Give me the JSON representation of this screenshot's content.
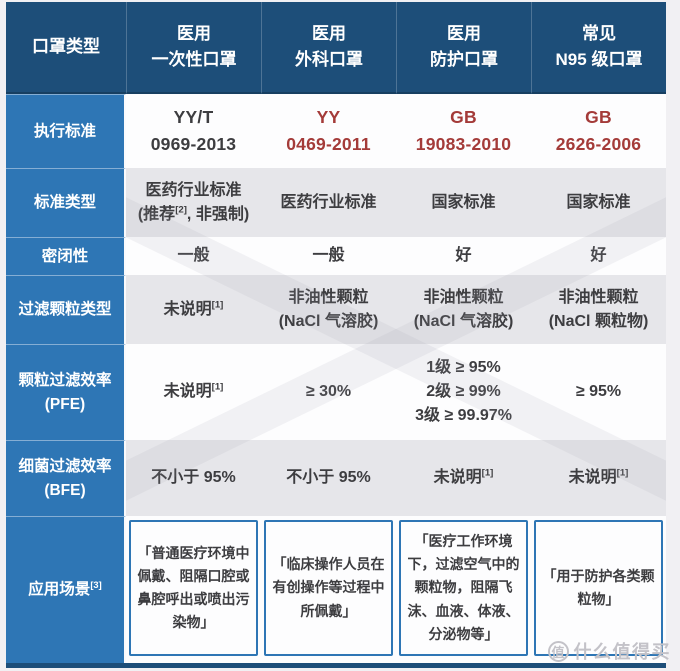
{
  "chart_data": {
    "type": "table",
    "corner_header": "口罩类型",
    "columns": [
      {
        "text": "医用\n一次性口罩"
      },
      {
        "text": "医用\n外科口罩"
      },
      {
        "text": "医用\n防护口罩"
      },
      {
        "text": "常见\nN95 级口罩"
      }
    ],
    "rows": [
      {
        "label": "执行标准",
        "cells": [
          {
            "text": "YY/T\n0969-2013"
          },
          {
            "text": "YY\n0469-2011"
          },
          {
            "text": "GB\n19083-2010"
          },
          {
            "text": "GB\n2626-2006"
          }
        ]
      },
      {
        "label": "标准类型",
        "cells": [
          {
            "text": "医药行业标准\n(推荐",
            "sup": "[2]",
            "post": ", 非强制)"
          },
          {
            "text": "医药行业标准"
          },
          {
            "text": "国家标准"
          },
          {
            "text": "国家标准"
          }
        ]
      },
      {
        "label": "密闭性",
        "cells": [
          {
            "text": "一般"
          },
          {
            "text": "一般"
          },
          {
            "text": "好"
          },
          {
            "text": "好"
          }
        ]
      },
      {
        "label": "过滤颗粒类型",
        "cells": [
          {
            "text": "未说明",
            "sup": "[1]"
          },
          {
            "text": "非油性颗粒\n(NaCl 气溶胶)"
          },
          {
            "text": "非油性颗粒\n(NaCl 气溶胶)"
          },
          {
            "text": "非油性颗粒\n(NaCl 颗粒物)"
          }
        ]
      },
      {
        "label": "颗粒过滤效率\n(PFE)",
        "cells": [
          {
            "text": "未说明",
            "sup": "[1]"
          },
          {
            "text": "≥ 30%"
          },
          {
            "text": "1级 ≥ 95%\n2级 ≥ 99%\n3级 ≥ 99.97%"
          },
          {
            "text": "≥ 95%"
          }
        ]
      },
      {
        "label": "细菌过滤效率\n(BFE)",
        "cells": [
          {
            "text": "不小于 95%"
          },
          {
            "text": "不小于 95%"
          },
          {
            "text": "未说明",
            "sup": "[1]"
          },
          {
            "text": "未说明",
            "sup": "[1]"
          }
        ]
      },
      {
        "label": "应用场景",
        "label_sup": "[3]",
        "cells": [
          {
            "text": "「普通医疗环境中佩戴、阻隔口腔或鼻腔呼出或喷出污染物」"
          },
          {
            "text": "「临床操作人员在有创操作等过程中所佩戴」"
          },
          {
            "text": "「医疗工作环境下，过滤空气中的颗粒物，阻隔飞沫、血液、体液、分泌物等」"
          },
          {
            "text": "「用于防护各类颗粒物」"
          }
        ]
      }
    ]
  },
  "watermark": {
    "logo": "值",
    "site": "什么值得买"
  },
  "colors": {
    "header_bg": "#1d4e79",
    "label_bg": "#2e76b5",
    "row_alt_bg": "#e6e6ea",
    "row_white_bg": "#fdfdfe",
    "red": "#a43b39",
    "text_dark": "#3d3d40",
    "page_bg": "#f1f0f3",
    "wm_gray": "#c3c2c8"
  }
}
